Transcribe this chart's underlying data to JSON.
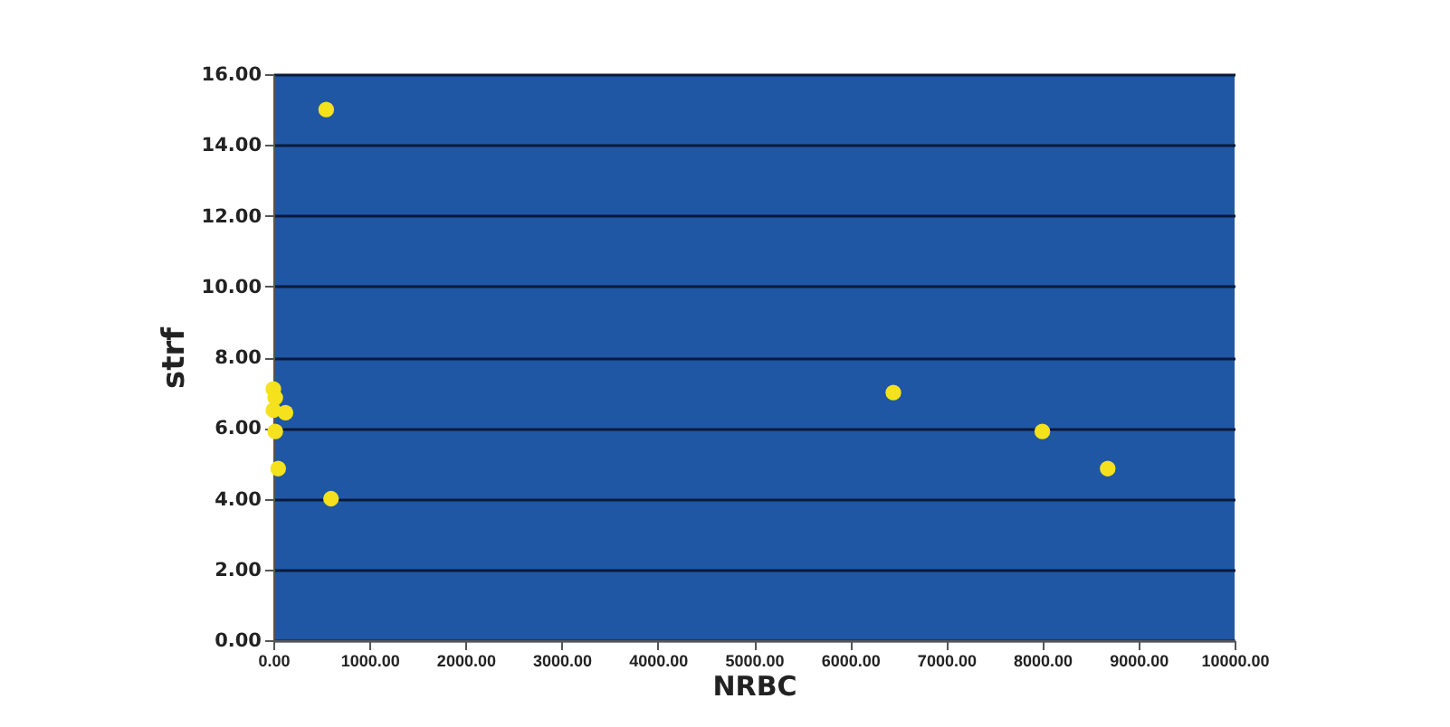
{
  "chart_data": {
    "type": "scatter",
    "xlabel": "NRBC",
    "ylabel": "strf",
    "x": [
      550,
      600,
      6450,
      8000,
      8680,
      0,
      20,
      126,
      0,
      20,
      50
    ],
    "values": [
      15.0,
      4.0,
      7.0,
      5.9,
      4.85,
      7.1,
      6.85,
      6.43,
      6.5,
      5.9,
      4.85
    ],
    "color": "#f5e21c",
    "marker": "circle",
    "xlim": [
      0,
      10000
    ],
    "xticks": [
      {
        "value": 0,
        "label": "0.00"
      },
      {
        "value": 1000,
        "label": "1000.00"
      },
      {
        "value": 2000,
        "label": "2000.00"
      },
      {
        "value": 3000,
        "label": "3000.00"
      },
      {
        "value": 4000,
        "label": "4000.00"
      },
      {
        "value": 5000,
        "label": "5000.00"
      },
      {
        "value": 6000,
        "label": "6000.00"
      },
      {
        "value": 7000,
        "label": "7000.00"
      },
      {
        "value": 8000,
        "label": "8000.00"
      },
      {
        "value": 9000,
        "label": "9000.00"
      },
      {
        "value": 10000,
        "label": "10000.00"
      }
    ],
    "ylim": [
      0,
      16
    ],
    "yticks": [
      {
        "value": 0,
        "label": "0.00"
      },
      {
        "value": 2,
        "label": "2.00"
      },
      {
        "value": 4,
        "label": "4.00"
      },
      {
        "value": 6,
        "label": "6.00"
      },
      {
        "value": 8,
        "label": "8.00"
      },
      {
        "value": 10,
        "label": "10.00"
      },
      {
        "value": 12,
        "label": "12.00"
      },
      {
        "value": 14,
        "label": "14.00"
      },
      {
        "value": 16,
        "label": "16.00"
      }
    ],
    "grid": "y"
  }
}
